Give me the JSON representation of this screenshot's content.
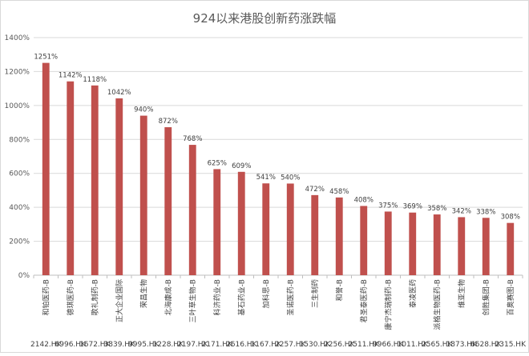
{
  "chart_data": {
    "type": "bar",
    "title": "924以来港股创新药涨跌幅",
    "xlabel": "",
    "ylabel": "",
    "ylim": [
      0,
      14
    ],
    "yticks": [
      "0%",
      "200%",
      "400%",
      "600%",
      "800%",
      "1000%",
      "1200%",
      "1400%"
    ],
    "grid": true,
    "bar_color": "#c0504d",
    "categories": [
      "和铂医药-B",
      "德琪医药-B",
      "歌礼制药-B",
      "正大企业国际",
      "荣昌生物",
      "北海康成-B",
      "三叶草生物-B",
      "科济药业-B",
      "基石药业-B",
      "加科思-B",
      "圣诺医药-B",
      "三生制药",
      "和誉-B",
      "君圣泰医药-B",
      "康宁杰瑞制药-B",
      "泰凌医药",
      "派格生物医药-B",
      "维亚生物",
      "创胜集团-B",
      "百奥赛图-B"
    ],
    "codes": [
      "2142.HK",
      "6996.HK",
      "1672.HK",
      "3839.HK",
      "9995.HK",
      "1228.HK",
      "2197.HK",
      "2171.HK",
      "2616.HK",
      "1167.HK",
      "2257.HK",
      "1530.HK",
      "2256.HK",
      "2511.HK",
      "9966.HK",
      "1011.HK",
      "2565.HK",
      "1873.HK",
      "6628.HK",
      "2315.HK"
    ],
    "values": [
      12.51,
      11.42,
      11.18,
      10.42,
      9.4,
      8.72,
      7.68,
      6.25,
      6.09,
      5.41,
      5.4,
      4.72,
      4.58,
      4.08,
      3.75,
      3.69,
      3.58,
      3.42,
      3.38,
      3.08
    ],
    "value_labels": [
      "1251%",
      "1142%",
      "1118%",
      "1042%",
      "940%",
      "872%",
      "768%",
      "625%",
      "609%",
      "541%",
      "540%",
      "472%",
      "458%",
      "408%",
      "375%",
      "369%",
      "358%",
      "342%",
      "338%",
      "308%"
    ]
  }
}
